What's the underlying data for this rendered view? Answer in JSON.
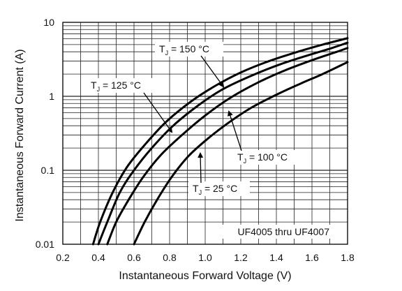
{
  "chart_data": {
    "type": "line",
    "xlabel": "Instantaneous Forward Voltage (V)",
    "ylabel": "Instantaneous Forward Current (A)",
    "xlim": [
      0.2,
      1.8
    ],
    "ylim": [
      0.01,
      10
    ],
    "y_scale": "log",
    "grid": true,
    "x_ticks": [
      "0.2",
      "0.4",
      "0.6",
      "0.8",
      "1.0",
      "1.2",
      "1.4",
      "1.6",
      "1.8"
    ],
    "y_ticks": [
      "0.01",
      "0.1",
      "1",
      "10"
    ],
    "annotation": "UF4005 thru UF4007",
    "series": [
      {
        "name": "T_J = 150 °C",
        "label_main": "T",
        "label_sub": "J",
        "label_rest": " = 150 °C",
        "x": [
          0.37,
          0.41,
          0.48,
          0.56,
          0.66,
          0.78,
          0.92,
          1.06,
          1.2,
          1.36,
          1.52,
          1.66,
          1.8
        ],
        "y": [
          0.01,
          0.02,
          0.05,
          0.11,
          0.22,
          0.45,
          0.85,
          1.4,
          2.1,
          3.0,
          4.0,
          5.0,
          6.1
        ]
      },
      {
        "name": "T_J = 125 °C",
        "label_main": "T",
        "label_sub": "J",
        "label_rest": " = 125 °C",
        "x": [
          0.4,
          0.45,
          0.52,
          0.6,
          0.7,
          0.82,
          0.96,
          1.1,
          1.26,
          1.42,
          1.58,
          1.7,
          1.8
        ],
        "y": [
          0.01,
          0.02,
          0.05,
          0.1,
          0.2,
          0.4,
          0.75,
          1.25,
          1.9,
          2.7,
          3.6,
          4.4,
          5.3
        ]
      },
      {
        "name": "T_J = 100 °C",
        "label_main": "T",
        "label_sub": "J",
        "label_rest": " = 100 °C",
        "x": [
          0.45,
          0.5,
          0.57,
          0.65,
          0.75,
          0.87,
          1.0,
          1.14,
          1.3,
          1.46,
          1.62,
          1.74,
          1.8
        ],
        "y": [
          0.01,
          0.02,
          0.04,
          0.08,
          0.16,
          0.3,
          0.55,
          0.95,
          1.55,
          2.3,
          3.2,
          4.0,
          4.5
        ]
      },
      {
        "name": "T_J = 25 °C",
        "label_main": "T",
        "label_sub": "J",
        "label_rest": " = 25 °C",
        "x": [
          0.6,
          0.66,
          0.73,
          0.81,
          0.9,
          1.0,
          1.12,
          1.25,
          1.4,
          1.54,
          1.66,
          1.8
        ],
        "y": [
          0.01,
          0.02,
          0.04,
          0.08,
          0.15,
          0.25,
          0.42,
          0.68,
          1.05,
          1.5,
          2.0,
          2.9
        ]
      }
    ]
  }
}
